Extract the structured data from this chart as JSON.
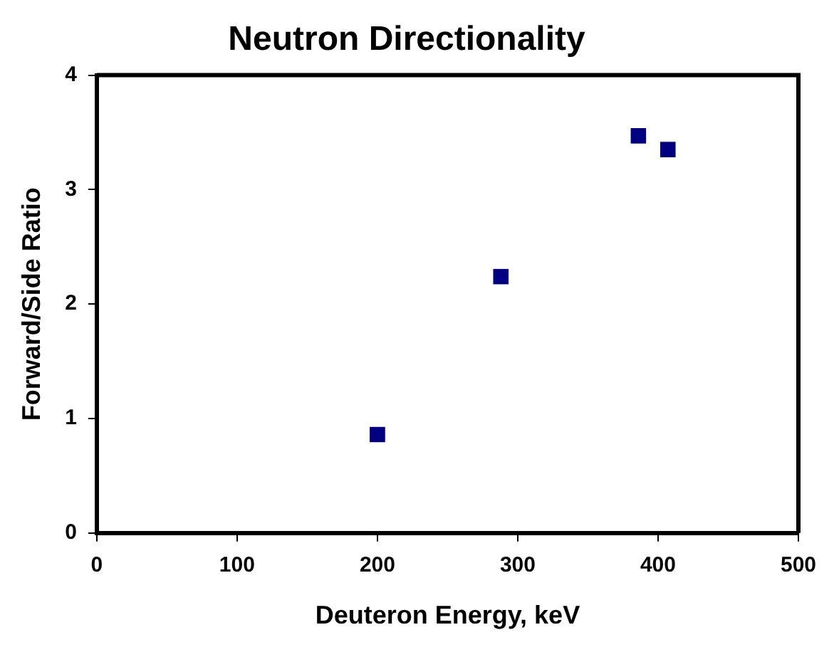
{
  "chart_data": {
    "type": "scatter",
    "title": "Neutron Directionality",
    "xlabel": "Deuteron Energy, keV",
    "ylabel": "Forward/Side Ratio",
    "x": [
      200,
      288,
      386,
      407
    ],
    "series": [
      {
        "color": "#000080",
        "values": [
          0.86,
          2.24,
          3.47,
          3.35
        ]
      }
    ],
    "marker": "square",
    "xlim": [
      0,
      500
    ],
    "xticks": [
      0,
      100,
      200,
      300,
      400,
      500
    ],
    "ylim": [
      0,
      4
    ],
    "yticks": [
      0,
      1,
      2,
      3,
      4
    ],
    "legend": false
  }
}
